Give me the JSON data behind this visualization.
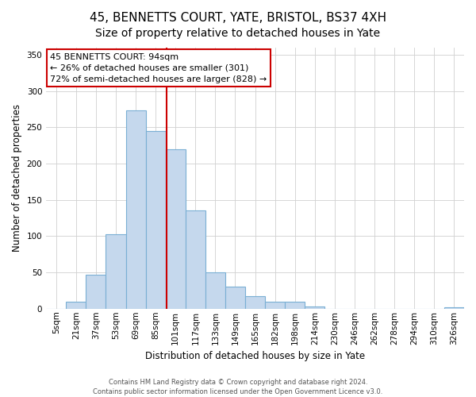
{
  "title": "45, BENNETTS COURT, YATE, BRISTOL, BS37 4XH",
  "subtitle": "Size of property relative to detached houses in Yate",
  "xlabel": "Distribution of detached houses by size in Yate",
  "ylabel": "Number of detached properties",
  "bar_values": [
    0,
    10,
    47,
    103,
    273,
    245,
    220,
    135,
    50,
    30,
    17,
    10,
    10,
    3,
    0,
    0,
    0,
    0,
    0,
    0,
    2
  ],
  "bin_labels": [
    "5sqm",
    "21sqm",
    "37sqm",
    "53sqm",
    "69sqm",
    "85sqm",
    "101sqm",
    "117sqm",
    "133sqm",
    "149sqm",
    "165sqm",
    "182sqm",
    "198sqm",
    "214sqm",
    "230sqm",
    "246sqm",
    "262sqm",
    "278sqm",
    "294sqm",
    "310sqm",
    "326sqm"
  ],
  "bar_color": "#c5d8ed",
  "bar_edge_color": "#7aafd4",
  "vline_color": "#cc0000",
  "ylim": [
    0,
    360
  ],
  "yticks": [
    0,
    50,
    100,
    150,
    200,
    250,
    300,
    350
  ],
  "annotation_title": "45 BENNETTS COURT: 94sqm",
  "annotation_line1": "← 26% of detached houses are smaller (301)",
  "annotation_line2": "72% of semi-detached houses are larger (828) →",
  "annotation_box_color": "#ffffff",
  "annotation_box_edge": "#cc0000",
  "footer_line1": "Contains HM Land Registry data © Crown copyright and database right 2024.",
  "footer_line2": "Contains public sector information licensed under the Open Government Licence v3.0.",
  "title_fontsize": 11,
  "axis_label_fontsize": 8.5,
  "tick_fontsize": 7.5,
  "annotation_fontsize": 8,
  "footer_fontsize": 6
}
